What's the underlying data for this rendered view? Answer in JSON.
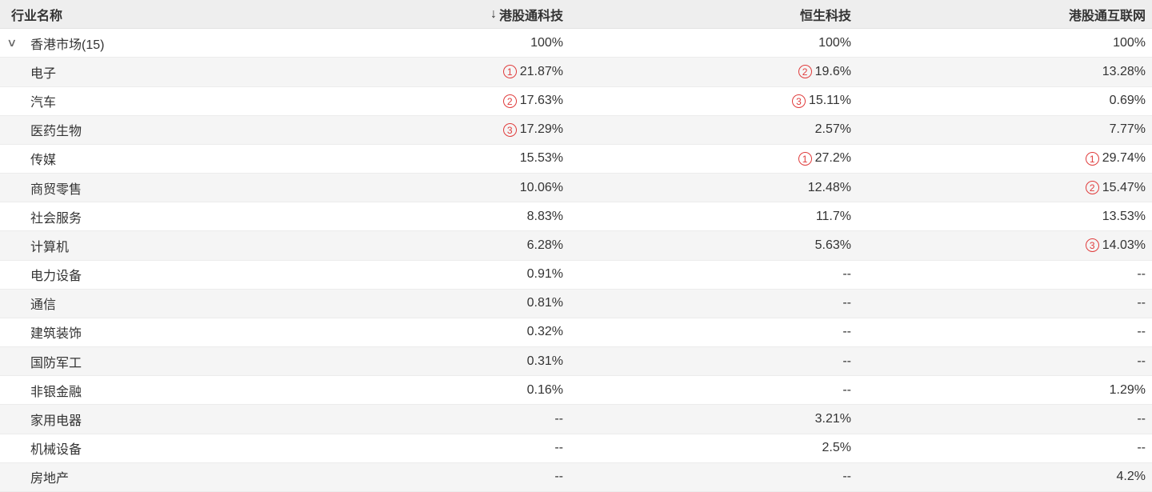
{
  "colors": {
    "rank_badge": "#e03c3c",
    "header_bg": "#eeeeee",
    "alt_row_bg": "#f5f5f5",
    "text": "#333333"
  },
  "table": {
    "sort_icon": "↓",
    "expand_icon": "∨",
    "columns": [
      {
        "label": "行业名称",
        "align": "left",
        "sorted": false
      },
      {
        "label": "港股通科技",
        "align": "right",
        "sorted": true
      },
      {
        "label": "恒生科技",
        "align": "right",
        "sorted": false
      },
      {
        "label": "港股通互联网",
        "align": "right",
        "sorted": false
      }
    ],
    "rows": [
      {
        "name": "香港市场(15)",
        "expandable": true,
        "values": [
          {
            "text": "100%"
          },
          {
            "text": "100%"
          },
          {
            "text": "100%"
          }
        ]
      },
      {
        "name": "电子",
        "values": [
          {
            "rank": "1",
            "text": "21.87%"
          },
          {
            "rank": "2",
            "text": "19.6%"
          },
          {
            "text": "13.28%"
          }
        ]
      },
      {
        "name": "汽车",
        "values": [
          {
            "rank": "2",
            "text": "17.63%"
          },
          {
            "rank": "3",
            "text": "15.11%"
          },
          {
            "text": "0.69%"
          }
        ]
      },
      {
        "name": "医药生物",
        "values": [
          {
            "rank": "3",
            "text": "17.29%"
          },
          {
            "text": "2.57%"
          },
          {
            "text": "7.77%"
          }
        ]
      },
      {
        "name": "传媒",
        "values": [
          {
            "text": "15.53%"
          },
          {
            "rank": "1",
            "text": "27.2%"
          },
          {
            "rank": "1",
            "text": "29.74%"
          }
        ]
      },
      {
        "name": "商贸零售",
        "values": [
          {
            "text": "10.06%"
          },
          {
            "text": "12.48%"
          },
          {
            "rank": "2",
            "text": "15.47%"
          }
        ]
      },
      {
        "name": "社会服务",
        "values": [
          {
            "text": "8.83%"
          },
          {
            "text": "11.7%"
          },
          {
            "text": "13.53%"
          }
        ]
      },
      {
        "name": "计算机",
        "values": [
          {
            "text": "6.28%"
          },
          {
            "text": "5.63%"
          },
          {
            "rank": "3",
            "text": "14.03%"
          }
        ]
      },
      {
        "name": "电力设备",
        "values": [
          {
            "text": "0.91%"
          },
          {
            "text": "--"
          },
          {
            "text": "--"
          }
        ]
      },
      {
        "name": "通信",
        "values": [
          {
            "text": "0.81%"
          },
          {
            "text": "--"
          },
          {
            "text": "--"
          }
        ]
      },
      {
        "name": "建筑装饰",
        "values": [
          {
            "text": "0.32%"
          },
          {
            "text": "--"
          },
          {
            "text": "--"
          }
        ]
      },
      {
        "name": "国防军工",
        "values": [
          {
            "text": "0.31%"
          },
          {
            "text": "--"
          },
          {
            "text": "--"
          }
        ]
      },
      {
        "name": "非银金融",
        "values": [
          {
            "text": "0.16%"
          },
          {
            "text": "--"
          },
          {
            "text": "1.29%"
          }
        ]
      },
      {
        "name": "家用电器",
        "values": [
          {
            "text": "--"
          },
          {
            "text": "3.21%"
          },
          {
            "text": "--"
          }
        ]
      },
      {
        "name": "机械设备",
        "values": [
          {
            "text": "--"
          },
          {
            "text": "2.5%"
          },
          {
            "text": "--"
          }
        ]
      },
      {
        "name": "房地产",
        "values": [
          {
            "text": "--"
          },
          {
            "text": "--"
          },
          {
            "text": "4.2%"
          }
        ]
      }
    ]
  }
}
